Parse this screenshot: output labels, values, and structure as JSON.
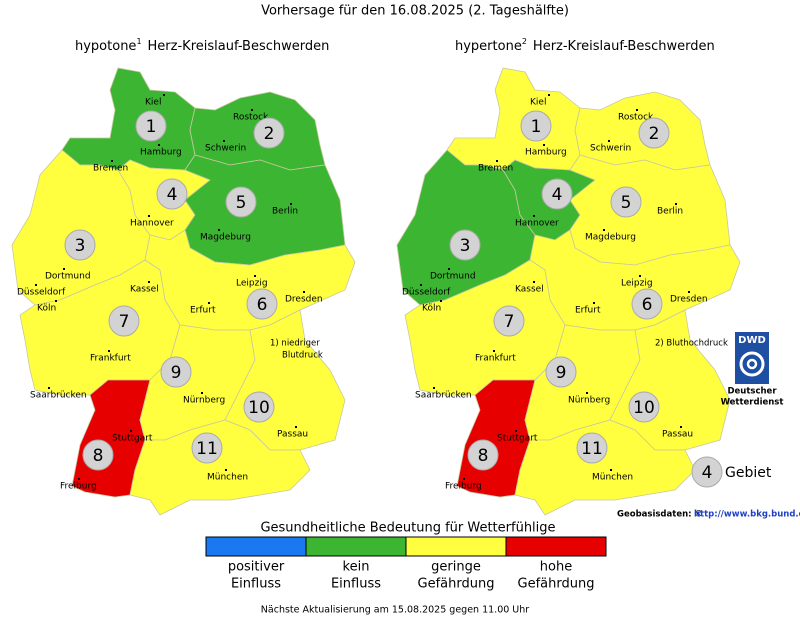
{
  "title": "Vorhersage für den 16.08.2025 (2. Tageshälfte)",
  "maps": [
    {
      "name": "hypotone",
      "sup": "1",
      "subject": "Herz-Kreislauf-Beschwerden",
      "regions": [
        {
          "label": "1",
          "color": "#3cb532"
        },
        {
          "label": "2",
          "color": "#3cb532"
        },
        {
          "label": "3",
          "color": "#ffff40"
        },
        {
          "label": "4",
          "color": "#ffff40"
        },
        {
          "label": "5",
          "color": "#3cb532"
        },
        {
          "label": "6",
          "color": "#ffff40"
        },
        {
          "label": "7",
          "color": "#ffff40"
        },
        {
          "label": "8",
          "color": "#e60000"
        },
        {
          "label": "9",
          "color": "#ffff40"
        },
        {
          "label": "10",
          "color": "#ffff40"
        },
        {
          "label": "11",
          "color": "#ffff40"
        }
      ],
      "note": [
        "1) niedriger",
        "Blutdruck"
      ]
    },
    {
      "name": "hypertone",
      "sup": "2",
      "subject": "Herz-Kreislauf-Beschwerden",
      "regions": [
        {
          "label": "1",
          "color": "#ffff40"
        },
        {
          "label": "2",
          "color": "#ffff40"
        },
        {
          "label": "3",
          "color": "#3cb532"
        },
        {
          "label": "4",
          "color": "#3cb532"
        },
        {
          "label": "5",
          "color": "#ffff40"
        },
        {
          "label": "6",
          "color": "#ffff40"
        },
        {
          "label": "7",
          "color": "#ffff40"
        },
        {
          "label": "8",
          "color": "#e60000"
        },
        {
          "label": "9",
          "color": "#ffff40"
        },
        {
          "label": "10",
          "color": "#ffff40"
        },
        {
          "label": "11",
          "color": "#ffff40"
        }
      ],
      "note": [
        "2) Bluthochdruck"
      ]
    }
  ],
  "cities": [
    "Kiel",
    "Rostock",
    "Hamburg",
    "Schwerin",
    "Bremen",
    "Hannover",
    "Berlin",
    "Magdeburg",
    "Dortmund",
    "Düsseldorf",
    "Köln",
    "Kassel",
    "Leipzig",
    "Dresden",
    "Erfurt",
    "Frankfurt",
    "Saarbrücken",
    "Nürnberg",
    "Stuttgart",
    "Passau",
    "München",
    "Freiburg"
  ],
  "legend": {
    "title": "Gesundheitliche Bedeutung für Wetterfühlige",
    "items": [
      {
        "lines": [
          "positiver",
          "Einfluss"
        ],
        "color": "#1a78f0"
      },
      {
        "lines": [
          "kein",
          "Einfluss"
        ],
        "color": "#3cb532"
      },
      {
        "lines": [
          "geringe",
          "Gefährdung"
        ],
        "color": "#ffff40"
      },
      {
        "lines": [
          "hohe",
          "Gefährdung"
        ],
        "color": "#e60000"
      }
    ]
  },
  "region_key": {
    "example": "4",
    "label": "Gebiet"
  },
  "logo": {
    "abbr": "DWD",
    "lines": [
      "Deutscher",
      "Wetterdienst"
    ]
  },
  "credit": {
    "text": "Geobasisdaten: ©",
    "link": "http://www.bkg.bund.de"
  },
  "footer": "Nächste Aktualisierung am 15.08.2025 gegen 11.00 Uhr"
}
